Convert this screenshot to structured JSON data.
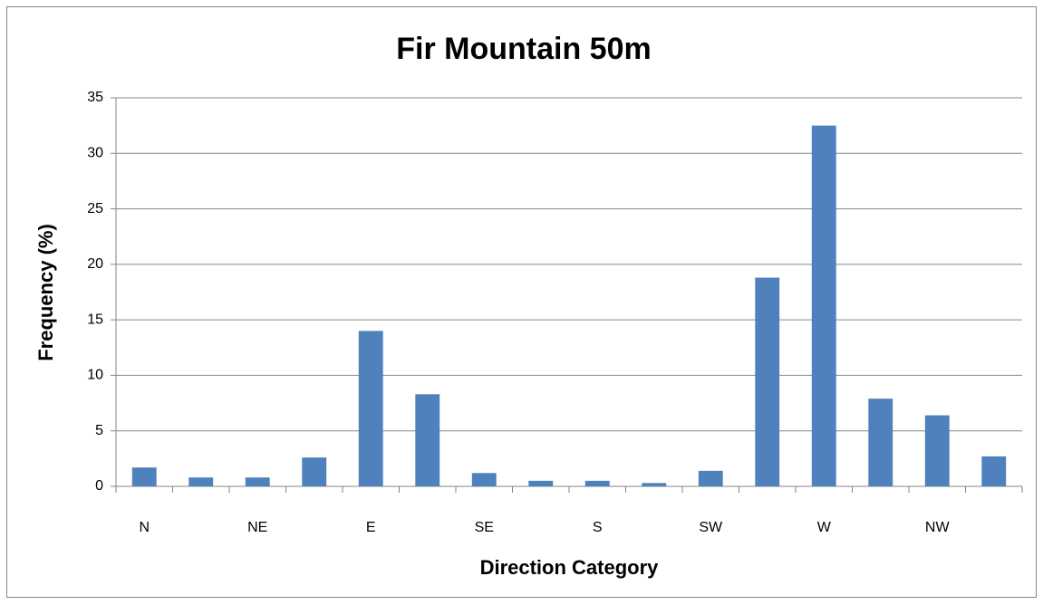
{
  "chart_data": {
    "type": "bar",
    "title": "Fir Mountain 50m",
    "x_label": "Direction Category",
    "y_label": "Frequency (%)",
    "categories": [
      "N",
      null,
      "NE",
      null,
      "E",
      null,
      "SE",
      null,
      "S",
      null,
      "SW",
      null,
      "W",
      null,
      "NW",
      null
    ],
    "values": [
      1.7,
      0.8,
      0.8,
      2.6,
      14.0,
      8.3,
      1.2,
      0.5,
      0.5,
      0.3,
      1.4,
      18.8,
      32.5,
      7.9,
      6.4,
      2.7
    ],
    "color": "#4f81bd",
    "ylim": [
      0,
      35
    ],
    "yticks": [
      0,
      5,
      10,
      15,
      20,
      25,
      30,
      35
    ],
    "grid": true
  }
}
